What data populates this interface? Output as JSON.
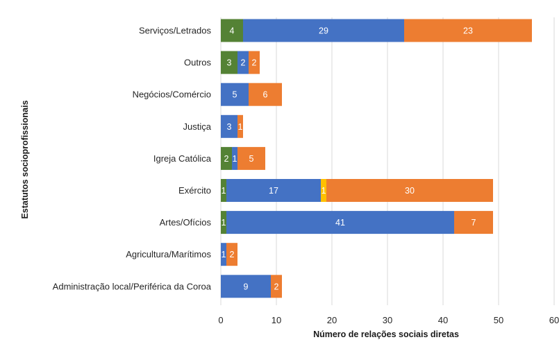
{
  "chart_data": {
    "type": "bar",
    "orientation": "horizontal",
    "stacked": true,
    "xlabel": "Número de relações sociais diretas",
    "ylabel": "Estatutos socioprofissionais",
    "xlim": [
      0,
      60
    ],
    "xticks": [
      0,
      10,
      20,
      30,
      40,
      50,
      60
    ],
    "grid": true,
    "categories": [
      "Serviços/Letrados",
      "Outros",
      "Negócios/Comércio",
      "Justiça",
      "Igreja Católica",
      "Exército",
      "Artes/Ofícios",
      "Agricultura/Marítimos",
      "Administração local/Periférica da Coroa"
    ],
    "series": [
      {
        "color": "#548235",
        "values": [
          4,
          3,
          0,
          0,
          2,
          1,
          1,
          0,
          0
        ]
      },
      {
        "color": "#4472c4",
        "values": [
          29,
          2,
          5,
          3,
          1,
          17,
          41,
          1,
          9
        ]
      },
      {
        "color": "#ffc000",
        "values": [
          0,
          0,
          0,
          0,
          0,
          1,
          0,
          0,
          0
        ]
      },
      {
        "color": "#ed7d31",
        "values": [
          23,
          2,
          6,
          1,
          5,
          30,
          7,
          2,
          2
        ]
      }
    ]
  }
}
